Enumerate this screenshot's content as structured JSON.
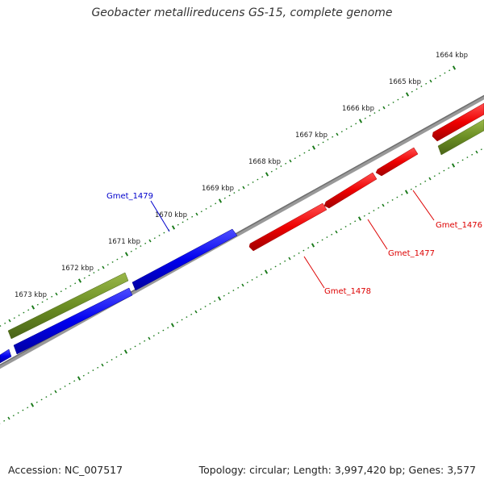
{
  "title": "Geobacter metallireducens GS-15, complete genome",
  "ticks": [
    {
      "kbp": 1664,
      "label": "1664 kbp"
    },
    {
      "kbp": 1665,
      "label": "1665 kbp"
    },
    {
      "kbp": 1666,
      "label": "1666 kbp"
    },
    {
      "kbp": 1667,
      "label": "1667 kbp"
    },
    {
      "kbp": 1668,
      "label": "1668 kbp"
    },
    {
      "kbp": 1669,
      "label": "1669 kbp"
    },
    {
      "kbp": 1670,
      "label": "1670 kbp"
    },
    {
      "kbp": 1671,
      "label": "1671 kbp"
    },
    {
      "kbp": 1672,
      "label": "1672 kbp"
    },
    {
      "kbp": 1673,
      "label": "1673 kbp"
    }
  ],
  "genes": [
    {
      "name": "Gmet_1479",
      "color": "#0000ee",
      "labeled": true
    },
    {
      "name": "Gmet_1478",
      "color": "#ee0000",
      "labeled": true
    },
    {
      "name": "Gmet_1477",
      "color": "#ee0000",
      "labeled": true
    },
    {
      "name": "Gmet_1476",
      "color": "#ee0000",
      "labeled": true
    }
  ],
  "colors": {
    "forward_strand": "#0000ee",
    "reverse_strand": "#ee0000",
    "other_feature": "#6b8e23",
    "backbone": "#888888",
    "tick_marks": "#1a7a1a"
  },
  "footer": {
    "accession": "Accession: NC_007517",
    "summary": "Topology: circular; Length: 3,997,420 bp; Genes: 3,577"
  }
}
